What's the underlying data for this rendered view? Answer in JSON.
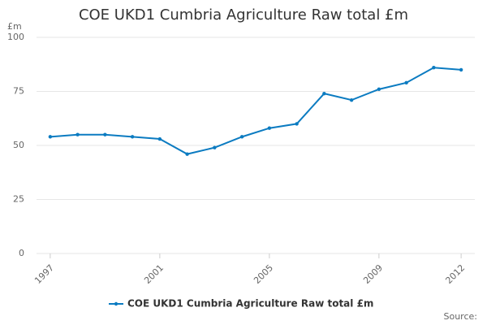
{
  "chart_data": {
    "type": "line",
    "title": "COE UKD1 Cumbria Agriculture Raw total £m",
    "y_label": "£m",
    "source": "Source:",
    "x": [
      1997,
      1998,
      1999,
      2000,
      2001,
      2002,
      2003,
      2004,
      2005,
      2006,
      2007,
      2008,
      2009,
      2010,
      2011,
      2012
    ],
    "series": [
      {
        "name": "COE UKD1 Cumbria Agriculture Raw total £m",
        "color": "#0b7bc1",
        "values": [
          54,
          55,
          55,
          54,
          53,
          46,
          49,
          54,
          58,
          60,
          74,
          71,
          76,
          79,
          86,
          85
        ]
      }
    ],
    "xlim": [
      1996.5,
      2012.5
    ],
    "xticks": [
      1997,
      2001,
      2005,
      2009,
      2012
    ],
    "ylim": [
      0,
      100
    ],
    "yticks": [
      0,
      25,
      50,
      75,
      100
    ],
    "grid": true
  }
}
